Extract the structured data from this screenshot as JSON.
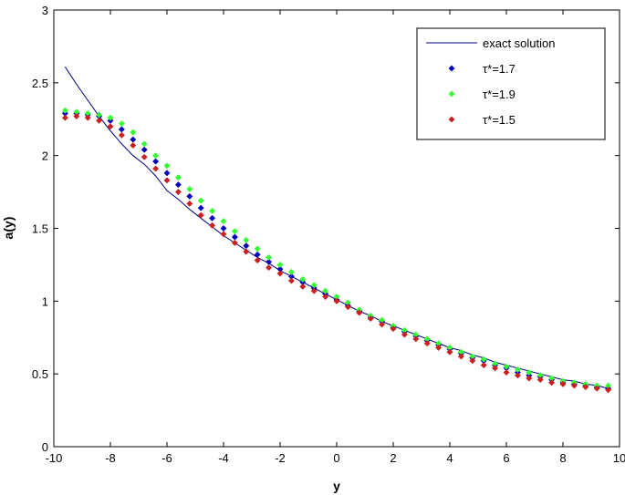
{
  "chart_data": {
    "type": "scatter",
    "title": "",
    "xlabel": "y",
    "ylabel": "a(y)",
    "xlim": [
      -10,
      10
    ],
    "ylim": [
      0,
      3
    ],
    "xticks": [
      -10,
      -8,
      -6,
      -4,
      -2,
      0,
      2,
      4,
      6,
      8,
      10
    ],
    "yticks": [
      0,
      0.5,
      1,
      1.5,
      2,
      2.5,
      3
    ],
    "xtick_labels": [
      "-10",
      "-8",
      "-6",
      "-4",
      "-2",
      "0",
      "2",
      "4",
      "6",
      "8",
      "10"
    ],
    "ytick_labels": [
      "0",
      "0.5",
      "1",
      "1.5",
      "2",
      "2.5",
      "3"
    ],
    "grid": false,
    "legend_position": "top-right",
    "series": [
      {
        "name": "exact solution",
        "style": "line",
        "color": "#00007f",
        "x": [
          -9.6,
          -9.2,
          -8.8,
          -8.4,
          -8.0,
          -7.6,
          -7.2,
          -6.8,
          -6.4,
          -6.0,
          -5.6,
          -5.2,
          -4.8,
          -4.4,
          -4.0,
          -3.6,
          -3.2,
          -2.8,
          -2.4,
          -2.0,
          -1.6,
          -1.2,
          -0.8,
          -0.4,
          0.0,
          0.4,
          0.8,
          1.2,
          1.6,
          2.0,
          2.4,
          2.8,
          3.2,
          3.6,
          4.0,
          4.4,
          4.8,
          5.2,
          5.6,
          6.0,
          6.4,
          6.8,
          7.2,
          7.6,
          8.0,
          8.4,
          8.8,
          9.2,
          9.6
        ],
        "y": [
          2.61,
          2.49,
          2.38,
          2.27,
          2.17,
          2.08,
          2.0,
          1.94,
          1.86,
          1.76,
          1.7,
          1.63,
          1.57,
          1.51,
          1.45,
          1.4,
          1.35,
          1.3,
          1.26,
          1.21,
          1.17,
          1.13,
          1.09,
          1.05,
          1.01,
          0.97,
          0.93,
          0.9,
          0.86,
          0.83,
          0.8,
          0.77,
          0.74,
          0.71,
          0.68,
          0.66,
          0.63,
          0.61,
          0.58,
          0.56,
          0.54,
          0.52,
          0.5,
          0.48,
          0.46,
          0.45,
          0.43,
          0.42,
          0.4
        ]
      },
      {
        "name": "τ*=1.7",
        "style": "marker",
        "color": "#0000bf",
        "x": [
          -9.6,
          -9.2,
          -8.8,
          -8.4,
          -8.0,
          -7.6,
          -7.2,
          -6.8,
          -6.4,
          -6.0,
          -5.6,
          -5.2,
          -4.8,
          -4.4,
          -4.0,
          -3.6,
          -3.2,
          -2.8,
          -2.4,
          -2.0,
          -1.6,
          -1.2,
          -0.8,
          -0.4,
          0.0,
          0.4,
          0.8,
          1.2,
          1.6,
          2.0,
          2.4,
          2.8,
          3.2,
          3.6,
          4.0,
          4.4,
          4.8,
          5.2,
          5.6,
          6.0,
          6.4,
          6.8,
          7.2,
          7.6,
          8.0,
          8.4,
          8.8,
          9.2,
          9.6
        ],
        "y": [
          2.29,
          2.29,
          2.28,
          2.27,
          2.24,
          2.18,
          2.11,
          2.04,
          1.96,
          1.88,
          1.8,
          1.72,
          1.64,
          1.57,
          1.5,
          1.44,
          1.38,
          1.32,
          1.27,
          1.22,
          1.17,
          1.13,
          1.09,
          1.05,
          1.01,
          0.97,
          0.93,
          0.89,
          0.86,
          0.82,
          0.79,
          0.76,
          0.73,
          0.7,
          0.67,
          0.64,
          0.61,
          0.59,
          0.56,
          0.54,
          0.51,
          0.49,
          0.48,
          0.46,
          0.44,
          0.43,
          0.42,
          0.41,
          0.4
        ]
      },
      {
        "name": "τ*=1.9",
        "style": "marker",
        "color": "#33ff33",
        "x": [
          -9.6,
          -9.2,
          -8.8,
          -8.4,
          -8.0,
          -7.6,
          -7.2,
          -6.8,
          -6.4,
          -6.0,
          -5.6,
          -5.2,
          -4.8,
          -4.4,
          -4.0,
          -3.6,
          -3.2,
          -2.8,
          -2.4,
          -2.0,
          -1.6,
          -1.2,
          -0.8,
          -0.4,
          0.0,
          0.4,
          0.8,
          1.2,
          1.6,
          2.0,
          2.4,
          2.8,
          3.2,
          3.6,
          4.0,
          4.4,
          4.8,
          5.2,
          5.6,
          6.0,
          6.4,
          6.8,
          7.2,
          7.6,
          8.0,
          8.4,
          8.8,
          9.2,
          9.6
        ],
        "y": [
          2.31,
          2.3,
          2.29,
          2.28,
          2.26,
          2.22,
          2.16,
          2.08,
          2.0,
          1.93,
          1.85,
          1.77,
          1.69,
          1.62,
          1.55,
          1.48,
          1.42,
          1.36,
          1.3,
          1.25,
          1.2,
          1.15,
          1.11,
          1.07,
          1.03,
          0.99,
          0.94,
          0.9,
          0.87,
          0.83,
          0.8,
          0.77,
          0.74,
          0.71,
          0.68,
          0.65,
          0.62,
          0.6,
          0.57,
          0.55,
          0.53,
          0.51,
          0.49,
          0.47,
          0.45,
          0.44,
          0.43,
          0.42,
          0.42
        ]
      },
      {
        "name": "τ*=1.5",
        "style": "marker",
        "color": "#cc1f1f",
        "x": [
          -9.6,
          -9.2,
          -8.8,
          -8.4,
          -8.0,
          -7.6,
          -7.2,
          -6.8,
          -6.4,
          -6.0,
          -5.6,
          -5.2,
          -4.8,
          -4.4,
          -4.0,
          -3.6,
          -3.2,
          -2.8,
          -2.4,
          -2.0,
          -1.6,
          -1.2,
          -0.8,
          -0.4,
          0.0,
          0.4,
          0.8,
          1.2,
          1.6,
          2.0,
          2.4,
          2.8,
          3.2,
          3.6,
          4.0,
          4.4,
          4.8,
          5.2,
          5.6,
          6.0,
          6.4,
          6.8,
          7.2,
          7.6,
          8.0,
          8.4,
          8.8,
          9.2,
          9.6
        ],
        "y": [
          2.26,
          2.27,
          2.26,
          2.24,
          2.2,
          2.14,
          2.07,
          1.99,
          1.91,
          1.83,
          1.75,
          1.67,
          1.59,
          1.52,
          1.46,
          1.4,
          1.34,
          1.28,
          1.23,
          1.19,
          1.14,
          1.1,
          1.07,
          1.03,
          1.0,
          0.96,
          0.92,
          0.88,
          0.84,
          0.81,
          0.77,
          0.74,
          0.71,
          0.68,
          0.65,
          0.62,
          0.59,
          0.56,
          0.54,
          0.51,
          0.49,
          0.47,
          0.46,
          0.44,
          0.43,
          0.42,
          0.41,
          0.4,
          0.39
        ]
      }
    ]
  }
}
